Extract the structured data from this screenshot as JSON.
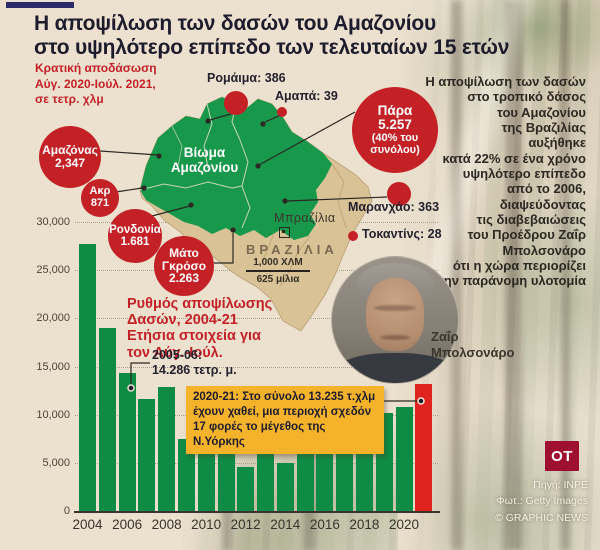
{
  "infographic": {
    "title": "Η αποψίλωση των δασών του Αμαζονίου\nστο υψηλότερο επίπεδο των τελευταίων 15 ετών",
    "subtitle": "Κρατική αποδάσωση\nΑύγ. 2020-Ιούλ. 2021,\nσε τετρ. χλμ"
  },
  "map": {
    "biome_label": "Βίωμα\nΑμαζονίου",
    "capital_label": "Μπραζίλια",
    "country_label": "ΒΡΑΖΙΛΙΑ",
    "scale_km": "1,000 ΧΛΜ",
    "scale_miles": "625 μίλια",
    "state_callouts": [
      {
        "id": "amazonas",
        "label": "Αμαζόνας",
        "value": "2,347"
      },
      {
        "id": "akre",
        "label": "Ακρ",
        "value": "871"
      },
      {
        "id": "rondonia",
        "label": "Ρονδονία",
        "value": "1.681"
      },
      {
        "id": "mato-grosso",
        "label": "Μάτο\nΓκρόσο",
        "value": "2.263"
      },
      {
        "id": "para",
        "label": "Πάρα",
        "value": "5.257",
        "note": "(40% του\nσυνόλου)"
      },
      {
        "id": "roraima",
        "text": "Ρομάιμα: 386"
      },
      {
        "id": "amapa",
        "text": "Αμαπά: 39"
      },
      {
        "id": "maranhao",
        "text": "Μαρανχάο: 363"
      },
      {
        "id": "tocantins",
        "text": "Τοκαντίνς: 28"
      }
    ]
  },
  "sidebar": {
    "text": "Η αποψίλωση των δασών\nστο τροπικό δάσος\nτου Αμαζονίου\nτης Βραζιλίας\nαυξήθηκε\nκατά 22% σε ένα χρόνο\nυψηλότερο επίπεδο\nαπό το 2006,\nδιαψεύδοντας\nτις διαβεβαιώσεις\nτου Προέδρου Ζαΐρ\nΜπολσονάρο\nότι η χώρα περιορίζει\nτην παράνομη υλοτομία"
  },
  "photo": {
    "caption": "Ζαΐρ\nΜπολσονάρο"
  },
  "chart_data": {
    "type": "bar",
    "title": "Ρυθμός αποψίλωσης Δασών, 2004-21",
    "subtitle": "Ετήσια στοιχεία για τον Αύγ.-Ιούλ.",
    "unit": "τετρ. χλμ",
    "categories": [
      2004,
      2005,
      2006,
      2007,
      2008,
      2009,
      2010,
      2011,
      2012,
      2013,
      2014,
      2015,
      2016,
      2017,
      2018,
      2019,
      2020,
      2021
    ],
    "values": [
      27772,
      19014,
      14286,
      11651,
      12911,
      7464,
      7000,
      6418,
      4571,
      5891,
      5012,
      6207,
      7893,
      6947,
      7536,
      10129,
      10851,
      13235
    ],
    "highlight_index": 17,
    "bar_color": "#0e8c46",
    "highlight_color": "#e0231f",
    "ylim": [
      0,
      30000
    ],
    "ytick_labels": [
      "0",
      "5,000",
      "10,000",
      "15,000",
      "20,000",
      "25,000",
      "30,000"
    ],
    "xtick_labels": [
      "2004",
      "2006",
      "2008",
      "2010",
      "2012",
      "2014",
      "2016",
      "2018",
      "2020"
    ],
    "grid": "horizontal-dotted",
    "annotations": [
      {
        "target": "2006",
        "text": "2005-06:\n14.286 τετρ. μ."
      },
      {
        "target": "2021",
        "text": "2020-21: Στο σύνολο 13.235 τ.χλμ έχουν χαθεί, μια περιοχή σχεδόν 17 φορές το μέγεθος της Ν.Υόρκης",
        "style": "yellow-box"
      }
    ]
  },
  "credits": {
    "source": "Πηγή: INPE",
    "photo": "Φωτ.: Getty Images",
    "copyright": "© GRAPHIC NEWS"
  },
  "logo": {
    "text": "OT"
  },
  "colors": {
    "accent_red": "#c42127",
    "highlight_red": "#e0231f",
    "map_green": "#17984b",
    "bar_green": "#0e8c46",
    "country_tan": "#d9c296",
    "annotation_yellow": "#f5b32b",
    "title_navy": "#1d1c2e",
    "background_cream": "#ece1cf"
  }
}
